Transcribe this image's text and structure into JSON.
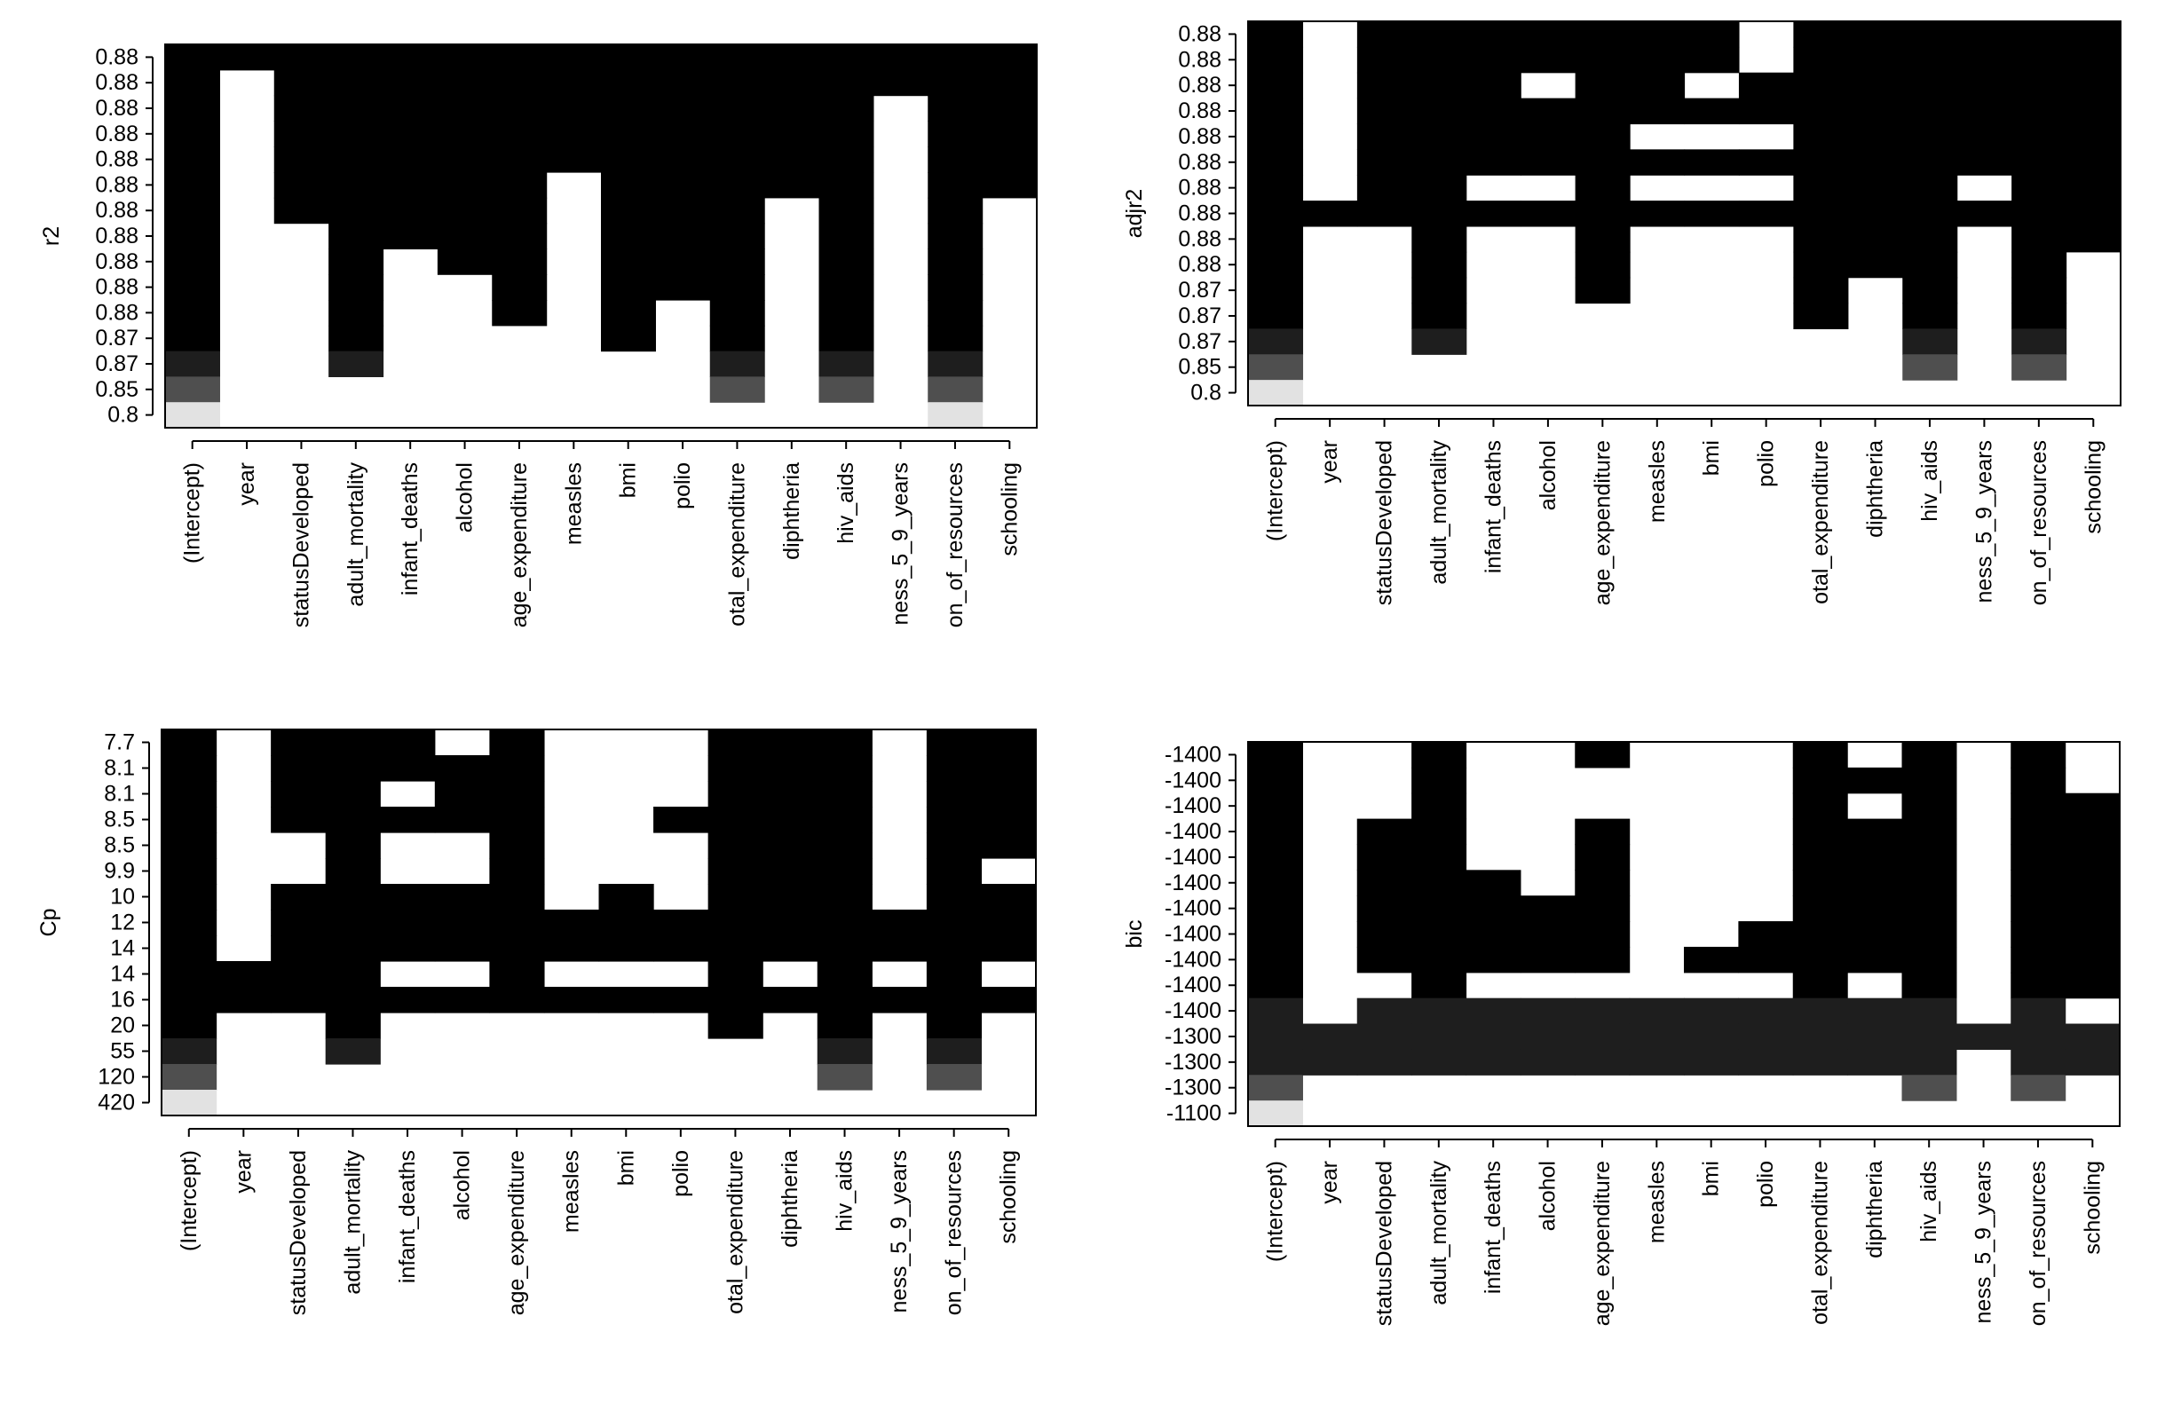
{
  "chart_data": [
    {
      "type": "heatmap",
      "ylabel": "r2",
      "variables": [
        "(Intercept)",
        "year",
        "statusDeveloped",
        "adult_mortality",
        "infant_deaths",
        "alcohol",
        "age_expenditure",
        "measles",
        "bmi",
        "polio",
        "otal_expenditure",
        "diphtheria",
        "hiv_aids",
        "ness_5_9_years",
        "on_of_resources",
        "schooling"
      ],
      "row_labels": [
        "0.88",
        "0.88",
        "0.88",
        "0.88",
        "0.88",
        "0.88",
        "0.88",
        "0.88",
        "0.88",
        "0.88",
        "0.88",
        "0.87",
        "0.87",
        "0.85",
        "0.8"
      ],
      "row_shades": [
        "#000000",
        "#000000",
        "#000000",
        "#000000",
        "#000000",
        "#000000",
        "#000000",
        "#000000",
        "#000000",
        "#000000",
        "#000000",
        "#000000",
        "#1e1e1e",
        "#4f4f4f",
        "#e2e2e2"
      ],
      "included_rows_from_top": [
        15,
        1,
        7,
        13,
        8,
        9,
        11,
        5,
        12,
        10,
        14,
        6,
        14,
        2,
        15,
        6
      ],
      "grid": false
    },
    {
      "type": "heatmap",
      "ylabel": "adjr2",
      "variables": [
        "(Intercept)",
        "year",
        "statusDeveloped",
        "adult_mortality",
        "infant_deaths",
        "alcohol",
        "age_expenditure",
        "measles",
        "bmi",
        "polio",
        "otal_expenditure",
        "diphtheria",
        "hiv_aids",
        "ness_5_9_years",
        "on_of_resources",
        "schooling"
      ],
      "row_labels": [
        "0.88",
        "0.88",
        "0.88",
        "0.88",
        "0.88",
        "0.88",
        "0.88",
        "0.88",
        "0.88",
        "0.88",
        "0.87",
        "0.87",
        "0.87",
        "0.85",
        "0.8"
      ],
      "row_shades": [
        "#000000",
        "#000000",
        "#000000",
        "#000000",
        "#000000",
        "#000000",
        "#000000",
        "#000000",
        "#000000",
        "#000000",
        "#000000",
        "#000000",
        "#1e1e1e",
        "#4f4f4f",
        "#e2e2e2"
      ],
      "included_rows": [
        [
          1,
          2,
          3,
          4,
          5,
          6,
          7,
          8,
          9,
          10,
          11,
          12,
          13,
          14,
          15
        ],
        [
          8
        ],
        [
          1,
          2,
          3,
          4,
          5,
          6,
          7,
          8
        ],
        [
          1,
          2,
          3,
          4,
          5,
          6,
          7,
          8,
          9,
          10,
          11,
          12,
          13
        ],
        [
          1,
          2,
          3,
          4,
          5,
          6,
          8
        ],
        [
          1,
          2,
          4,
          5,
          6,
          8
        ],
        [
          1,
          2,
          3,
          4,
          5,
          6,
          7,
          8,
          9,
          10,
          11
        ],
        [
          1,
          2,
          3,
          4,
          6,
          8
        ],
        [
          1,
          2,
          4,
          6,
          8
        ],
        [
          3,
          4,
          6,
          8
        ],
        [
          1,
          2,
          3,
          4,
          5,
          6,
          7,
          8,
          9,
          10,
          11,
          12
        ],
        [
          1,
          2,
          3,
          4,
          5,
          6,
          7,
          8,
          9,
          10
        ],
        [
          1,
          2,
          3,
          4,
          5,
          6,
          7,
          8,
          9,
          10,
          11,
          12,
          13,
          14
        ],
        [
          1,
          2,
          3,
          4,
          5,
          6,
          8
        ],
        [
          1,
          2,
          3,
          4,
          5,
          6,
          7,
          8,
          9,
          10,
          11,
          12,
          13,
          14
        ],
        [
          1,
          2,
          3,
          4,
          5,
          6,
          7,
          8,
          9
        ]
      ],
      "grid": false
    },
    {
      "type": "heatmap",
      "ylabel": "Cp",
      "variables": [
        "(Intercept)",
        "year",
        "statusDeveloped",
        "adult_mortality",
        "infant_deaths",
        "alcohol",
        "age_expenditure",
        "measles",
        "bmi",
        "polio",
        "otal_expenditure",
        "diphtheria",
        "hiv_aids",
        "ness_5_9_years",
        "on_of_resources",
        "schooling"
      ],
      "row_labels": [
        "7.7",
        "8.1",
        "8.1",
        "8.5",
        "8.5",
        "9.9",
        "10",
        "12",
        "14",
        "14",
        "16",
        "20",
        "55",
        "120",
        "420"
      ],
      "row_shades": [
        "#000000",
        "#000000",
        "#000000",
        "#000000",
        "#000000",
        "#000000",
        "#000000",
        "#000000",
        "#000000",
        "#000000",
        "#000000",
        "#000000",
        "#1e1e1e",
        "#4f4f4f",
        "#e2e2e2"
      ],
      "included_rows": [
        [
          1,
          2,
          3,
          4,
          5,
          6,
          7,
          8,
          9,
          10,
          11,
          12,
          13,
          14,
          15
        ],
        [
          10,
          11
        ],
        [
          1,
          2,
          3,
          4,
          7,
          8,
          9,
          10,
          11
        ],
        [
          1,
          2,
          3,
          4,
          5,
          6,
          7,
          8,
          9,
          10,
          11,
          12,
          13
        ],
        [
          1,
          2,
          4,
          7,
          8,
          9,
          11
        ],
        [
          2,
          3,
          4,
          7,
          8,
          9,
          11
        ],
        [
          1,
          2,
          3,
          4,
          5,
          6,
          7,
          8,
          9,
          10,
          11
        ],
        [
          8,
          9,
          11
        ],
        [
          7,
          8,
          9,
          11
        ],
        [
          4,
          8,
          9,
          11
        ],
        [
          1,
          2,
          3,
          4,
          5,
          6,
          7,
          8,
          9,
          10,
          11,
          12
        ],
        [
          1,
          2,
          3,
          4,
          5,
          6,
          7,
          8,
          9,
          11
        ],
        [
          1,
          2,
          3,
          4,
          5,
          6,
          7,
          8,
          9,
          10,
          11,
          12,
          13,
          14
        ],
        [
          8,
          9,
          11
        ],
        [
          1,
          2,
          3,
          4,
          5,
          6,
          7,
          8,
          9,
          10,
          11,
          12,
          13,
          14
        ],
        [
          1,
          2,
          3,
          4,
          5,
          7,
          8,
          9,
          11
        ]
      ],
      "grid": false
    },
    {
      "type": "heatmap",
      "ylabel": "bic",
      "variables": [
        "(Intercept)",
        "year",
        "statusDeveloped",
        "adult_mortality",
        "infant_deaths",
        "alcohol",
        "age_expenditure",
        "measles",
        "bmi",
        "polio",
        "otal_expenditure",
        "diphtheria",
        "hiv_aids",
        "ness_5_9_years",
        "on_of_resources",
        "schooling"
      ],
      "row_labels": [
        "-1400",
        "-1400",
        "-1400",
        "-1400",
        "-1400",
        "-1400",
        "-1400",
        "-1400",
        "-1400",
        "-1400",
        "-1400",
        "-1300",
        "-1300",
        "-1300",
        "-1100"
      ],
      "row_shades": [
        "#000000",
        "#000000",
        "#000000",
        "#000000",
        "#000000",
        "#000000",
        "#000000",
        "#000000",
        "#000000",
        "#000000",
        "#1e1e1e",
        "#1e1e1e",
        "#1e1e1e",
        "#4f4f4f",
        "#e2e2e2"
      ],
      "included_rows": [
        [
          1,
          2,
          3,
          4,
          5,
          6,
          7,
          8,
          9,
          10,
          11,
          12,
          13,
          14,
          15
        ],
        [
          12,
          13
        ],
        [
          4,
          5,
          6,
          7,
          8,
          9,
          11,
          12,
          13
        ],
        [
          1,
          2,
          3,
          4,
          5,
          6,
          7,
          8,
          9,
          10,
          11,
          12,
          13
        ],
        [
          6,
          7,
          8,
          9,
          11,
          12,
          13
        ],
        [
          7,
          8,
          9,
          11,
          12,
          13
        ],
        [
          1,
          4,
          5,
          6,
          7,
          8,
          9,
          11,
          12,
          13
        ],
        [
          11,
          12,
          13
        ],
        [
          9,
          11,
          12,
          13
        ],
        [
          8,
          9,
          11,
          12,
          13
        ],
        [
          1,
          2,
          3,
          4,
          5,
          6,
          7,
          8,
          9,
          10,
          11,
          12,
          13
        ],
        [
          2,
          4,
          5,
          6,
          7,
          8,
          9,
          11,
          12,
          13
        ],
        [
          1,
          2,
          3,
          4,
          5,
          6,
          7,
          8,
          9,
          10,
          11,
          12,
          13,
          14
        ],
        [
          12
        ],
        [
          1,
          2,
          3,
          4,
          5,
          6,
          7,
          8,
          9,
          10,
          11,
          12,
          13,
          14
        ],
        [
          3,
          4,
          5,
          6,
          7,
          8,
          9,
          10,
          12,
          13
        ]
      ],
      "grid": false
    }
  ]
}
